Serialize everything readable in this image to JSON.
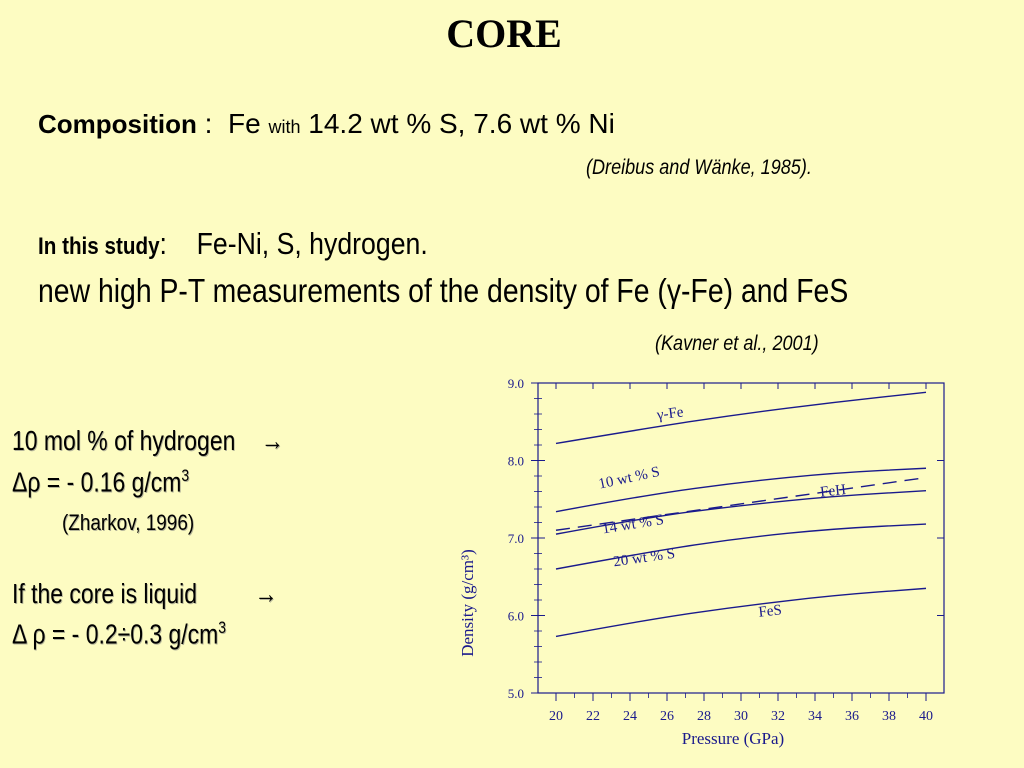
{
  "slide": {
    "title": "CORE",
    "composition": {
      "label": "Composition",
      "colon": " :",
      "fe": "Fe",
      "with": "with",
      "rest": "14.2 wt % S, 7.6 wt % Ni",
      "citation": "(Dreibus and Wänke, 1985)."
    },
    "study": {
      "label": "In this study",
      "colon": ":",
      "value": "Fe-Ni, S, hydrogen.",
      "line2": "new high P-T measurements of the density of Fe (γ-Fe) and FeS",
      "citation": "(Kavner et al., 2001)"
    },
    "hydrogen_note": {
      "line1": "10 mol % of hydrogen",
      "arrow": "→",
      "delta_prefix": "Δρ = - 0.16 g/cm",
      "exp": "3",
      "citation": "(Zharkov, 1996)"
    },
    "liquid_note": {
      "line1": "If the core is liquid",
      "arrow": "→",
      "delta_prefix": "Δ ρ = - 0.2÷0.3 g/cm",
      "exp": "3"
    }
  },
  "colors": {
    "background": "#fdfcc2",
    "chart_ink": "#1a1a8c"
  },
  "chart_data": {
    "type": "line",
    "xlabel": "Pressure (GPa)",
    "ylabel": "Density (g/cm³)",
    "xlim": [
      20,
      40
    ],
    "ylim": [
      5.0,
      9.0
    ],
    "xticks": [
      "20",
      "22",
      "24",
      "26",
      "28",
      "30",
      "32",
      "34",
      "36",
      "38",
      "40"
    ],
    "yticks": [
      "5.0",
      "6.0",
      "7.0",
      "8.0",
      "9.0"
    ],
    "grid": false,
    "series": [
      {
        "name": "γ-Fe",
        "style": "solid",
        "x": [
          20,
          25,
          30,
          35,
          40
        ],
        "y": [
          8.22,
          8.42,
          8.6,
          8.75,
          8.88
        ]
      },
      {
        "name": "10 wt % S",
        "style": "solid",
        "x": [
          20,
          25,
          30,
          35,
          40
        ],
        "y": [
          7.34,
          7.56,
          7.72,
          7.84,
          7.9
        ]
      },
      {
        "name": "FeH",
        "style": "dashed",
        "x": [
          20,
          40
        ],
        "y": [
          7.1,
          7.78
        ]
      },
      {
        "name": "14 wt % S",
        "style": "solid",
        "x": [
          20,
          25,
          30,
          35,
          40
        ],
        "y": [
          7.05,
          7.27,
          7.42,
          7.54,
          7.61
        ]
      },
      {
        "name": "20 wt % S",
        "style": "solid",
        "x": [
          20,
          25,
          30,
          35,
          40
        ],
        "y": [
          6.6,
          6.82,
          7.0,
          7.12,
          7.18
        ]
      },
      {
        "name": "FeS",
        "style": "solid",
        "x": [
          20,
          25,
          30,
          35,
          40
        ],
        "y": [
          5.73,
          5.95,
          6.12,
          6.26,
          6.35
        ]
      }
    ]
  }
}
